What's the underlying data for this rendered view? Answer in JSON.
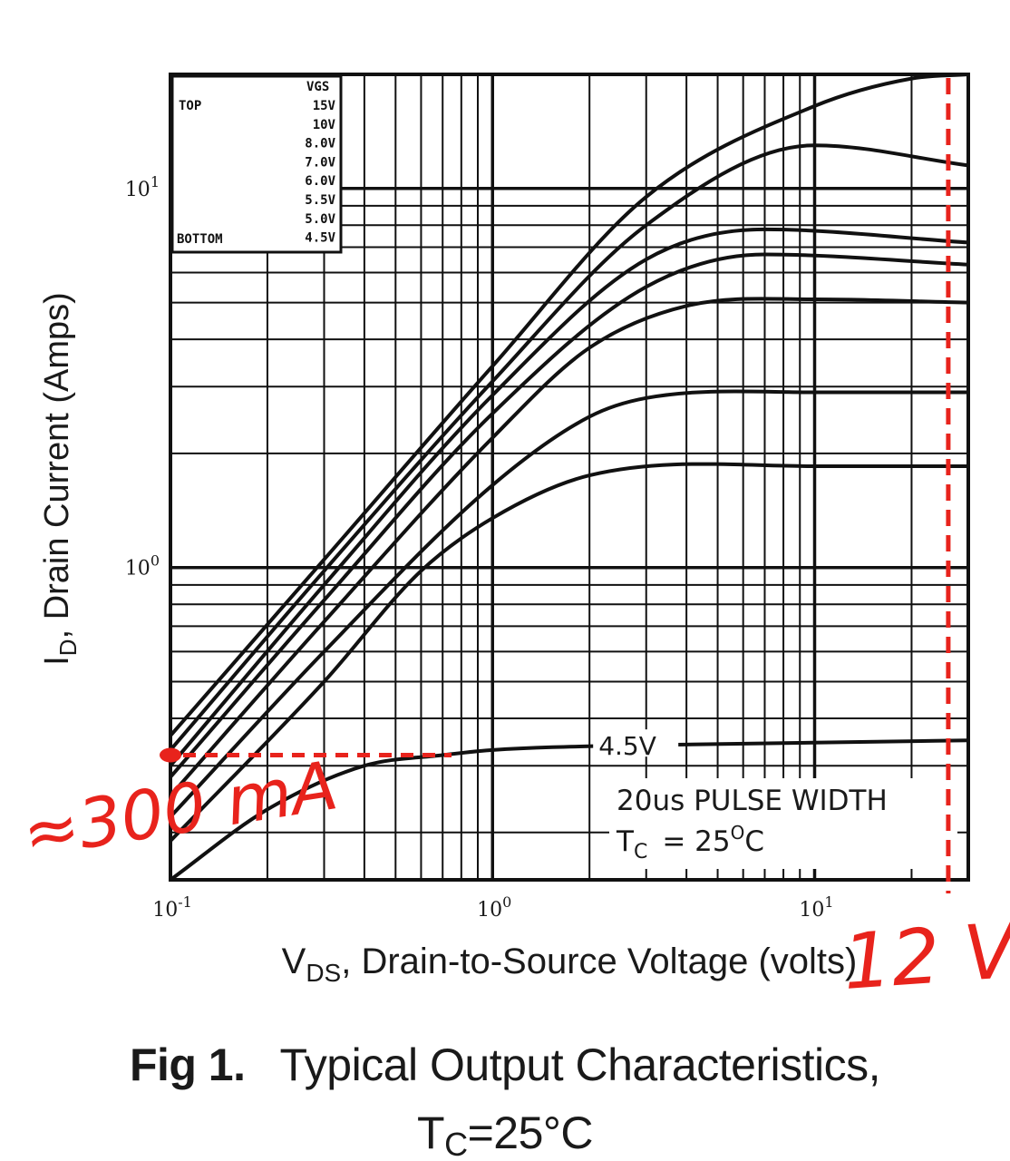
{
  "figure": {
    "number": "Fig 1.",
    "title": "Typical Output Characteristics,",
    "condition_prefix": "T",
    "condition_sub": "C",
    "condition_suffix": "=25°C"
  },
  "chart_data": {
    "type": "line",
    "scale": {
      "x": "log",
      "y": "log"
    },
    "xlim": [
      0.1,
      30
    ],
    "ylim": [
      0.15,
      20
    ],
    "xlabel": {
      "main": "V",
      "sub": "DS",
      "rest": ", Drain-to-Source Voltage (volts)"
    },
    "ylabel": {
      "main": "I",
      "sub": "D",
      "rest": ", Drain Current (Amps)"
    },
    "x_ticks": [
      {
        "value": 0.1,
        "base": "10",
        "exp": "-1"
      },
      {
        "value": 1,
        "base": "10",
        "exp": "0"
      },
      {
        "value": 10,
        "base": "10",
        "exp": "1"
      }
    ],
    "y_ticks": [
      {
        "value": 1,
        "base": "10",
        "exp": "0"
      },
      {
        "value": 10,
        "base": "10",
        "exp": "1"
      }
    ],
    "grid": true,
    "legend": {
      "position": "top-left",
      "header": "VGS",
      "top_label": "TOP",
      "bottom_label": "BOTTOM",
      "entries": [
        "15V",
        "10V",
        "8.0V",
        "7.0V",
        "6.0V",
        "5.5V",
        "5.0V",
        "4.5V"
      ]
    },
    "series": [
      {
        "name": "15V",
        "x": [
          0.1,
          0.3,
          1,
          3,
          10,
          20,
          30
        ],
        "y": [
          0.36,
          1.05,
          3.4,
          9.5,
          16.5,
          19.5,
          20
        ]
      },
      {
        "name": "10V",
        "x": [
          0.1,
          0.3,
          1,
          3,
          10,
          30
        ],
        "y": [
          0.33,
          0.98,
          3.1,
          8.0,
          13.0,
          11.5
        ]
      },
      {
        "name": "8.0V",
        "x": [
          0.1,
          0.3,
          1,
          3,
          7,
          30
        ],
        "y": [
          0.3,
          0.9,
          2.85,
          6.5,
          7.8,
          7.2
        ]
      },
      {
        "name": "7.0V",
        "x": [
          0.1,
          0.3,
          1,
          3,
          7,
          30
        ],
        "y": [
          0.28,
          0.82,
          2.55,
          5.5,
          6.7,
          6.3
        ]
      },
      {
        "name": "6.0V",
        "x": [
          0.1,
          0.3,
          1,
          2,
          4,
          10,
          30
        ],
        "y": [
          0.25,
          0.72,
          2.2,
          3.8,
          4.9,
          5.1,
          5.0
        ]
      },
      {
        "name": "5.5V",
        "x": [
          0.1,
          0.3,
          1,
          2,
          3,
          10,
          30
        ],
        "y": [
          0.22,
          0.6,
          1.65,
          2.5,
          2.8,
          2.9,
          2.9
        ]
      },
      {
        "name": "5.0V",
        "x": [
          0.1,
          0.3,
          0.6,
          1,
          2,
          10,
          30
        ],
        "y": [
          0.19,
          0.5,
          0.98,
          1.35,
          1.75,
          1.85,
          1.85
        ]
      },
      {
        "name": "4.5V",
        "x": [
          0.1,
          0.2,
          0.4,
          0.7,
          1,
          3,
          30
        ],
        "y": [
          0.15,
          0.23,
          0.3,
          0.32,
          0.33,
          0.34,
          0.35
        ]
      }
    ],
    "curve_label": {
      "text": "4.5V",
      "x": 2.0,
      "y": 0.335
    },
    "annotations": {
      "pulse": "20us PULSE WIDTH",
      "temp_prefix": "T",
      "temp_sub": "C",
      "temp_value": "= 25",
      "temp_deg": "O",
      "temp_unit": "C"
    },
    "handwritten": {
      "color": "#e8231c",
      "current": "≈300 mA",
      "voltage": "12 V",
      "current_level_A": 0.32,
      "voltage_level_V": 26
    }
  }
}
